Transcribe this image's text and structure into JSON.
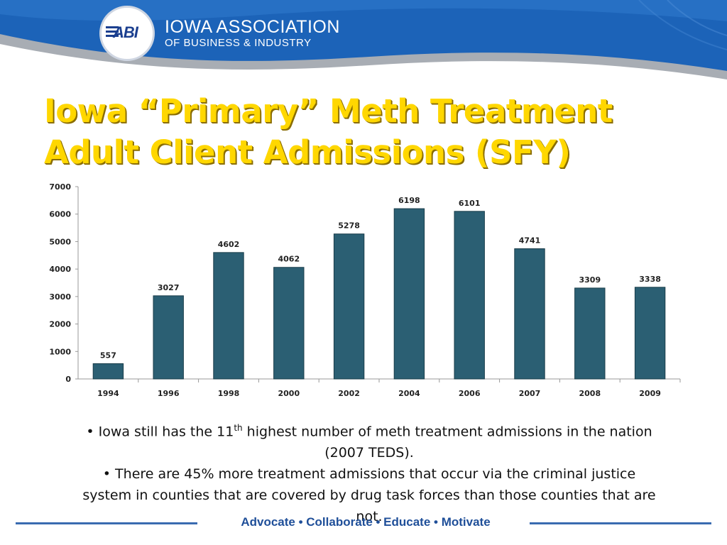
{
  "header": {
    "logo_text": "ABI",
    "org_line1": "IOWA ASSOCIATION",
    "org_line2": "OF BUSINESS & INDUSTRY"
  },
  "slide": {
    "title_line1": "Iowa “Primary” Meth Treatment",
    "title_line2": "Adult Client Admissions (SFY)"
  },
  "chart_data": {
    "type": "bar",
    "categories": [
      "1994",
      "1996",
      "1998",
      "2000",
      "2002",
      "2004",
      "2006",
      "2007",
      "2008",
      "2009"
    ],
    "values": [
      557,
      3027,
      4602,
      4062,
      5278,
      6198,
      6101,
      4741,
      3309,
      3338
    ],
    "yticks": [
      0,
      1000,
      2000,
      3000,
      4000,
      5000,
      6000,
      7000
    ],
    "ylim": [
      0,
      7000
    ],
    "grid": false,
    "bar_color": "#2b5f73",
    "title": "",
    "xlabel": "",
    "ylabel": ""
  },
  "bullets": {
    "b1_pre": "• Iowa still has the 11",
    "b1_sup": "th",
    "b1_post": " highest number of meth treatment admissions in the nation (2007 TEDS).",
    "b2": "• There are 45% more treatment admissions that occur via the criminal justice system in counties that are covered by drug task forces than those counties that are not."
  },
  "footer": {
    "tagline": "Advocate  •  Collaborate  •  Educate  •  Motivate"
  },
  "colors": {
    "header_blue": "#1a5fb4",
    "title_yellow": "#ffd700",
    "bar": "#2b5f73"
  }
}
